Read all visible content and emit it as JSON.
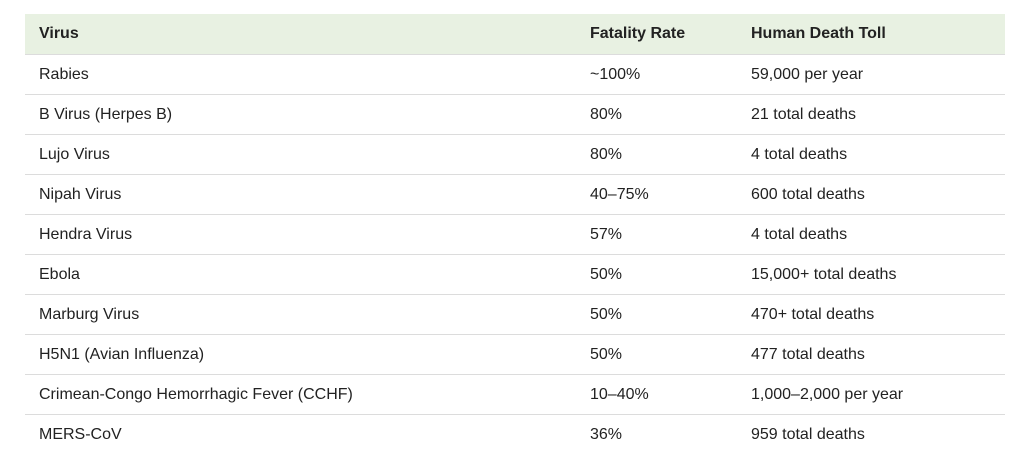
{
  "table": {
    "header": [
      "Virus",
      "Fatality Rate",
      "Human Death Toll"
    ],
    "rows": [
      [
        "Rabies",
        "~100%",
        "59,000 per year"
      ],
      [
        "B Virus (Herpes B)",
        "80%",
        "21 total deaths"
      ],
      [
        "Lujo Virus",
        "80%",
        "4 total deaths"
      ],
      [
        "Nipah Virus",
        "40–75%",
        "600 total deaths"
      ],
      [
        "Hendra Virus",
        "57%",
        "4 total deaths"
      ],
      [
        "Ebola",
        "50%",
        "15,000+ total deaths"
      ],
      [
        "Marburg Virus",
        "50%",
        "470+ total deaths"
      ],
      [
        "H5N1 (Avian Influenza)",
        "50%",
        "477 total deaths"
      ],
      [
        "Crimean-Congo Hemorrhagic Fever (CCHF)",
        "10–40%",
        "1,000–2,000 per year"
      ],
      [
        "MERS-CoV",
        "36%",
        "959 total deaths"
      ]
    ]
  }
}
